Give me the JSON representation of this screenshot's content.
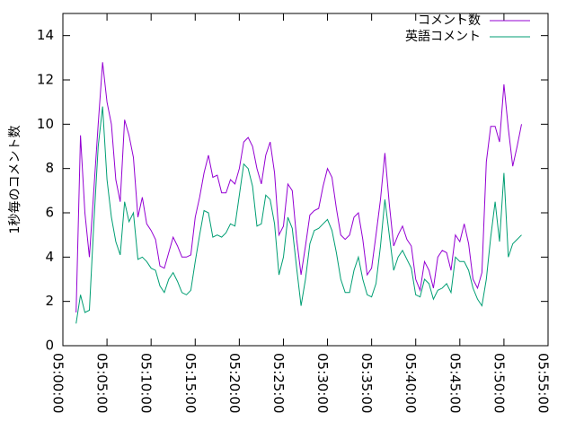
{
  "chart_data": {
    "type": "line",
    "ylabel": "1秒毎のコメント数",
    "ylim": [
      0,
      15
    ],
    "yticks": [
      0,
      2,
      4,
      6,
      8,
      10,
      12,
      14
    ],
    "xlim": [
      "05:00:00",
      "05:55:00"
    ],
    "xticks": [
      "05:00:00",
      "05:05:00",
      "05:10:00",
      "05:15:00",
      "05:20:00",
      "05:25:00",
      "05:30:00",
      "05:35:00",
      "05:40:00",
      "05:45:00",
      "05:50:00",
      "05:55:00"
    ],
    "legend": "top-right",
    "x": [
      "05:01:30",
      "05:02:00",
      "05:02:30",
      "05:03:00",
      "05:03:30",
      "05:04:00",
      "05:04:30",
      "05:05:00",
      "05:05:30",
      "05:06:00",
      "05:06:30",
      "05:07:00",
      "05:07:30",
      "05:08:00",
      "05:08:30",
      "05:09:00",
      "05:09:30",
      "05:10:00",
      "05:10:30",
      "05:11:00",
      "05:11:30",
      "05:12:00",
      "05:12:30",
      "05:13:00",
      "05:13:30",
      "05:14:00",
      "05:14:30",
      "05:15:00",
      "05:15:30",
      "05:16:00",
      "05:16:30",
      "05:17:00",
      "05:17:30",
      "05:18:00",
      "05:18:30",
      "05:19:00",
      "05:19:30",
      "05:20:00",
      "05:20:30",
      "05:21:00",
      "05:21:30",
      "05:22:00",
      "05:22:30",
      "05:23:00",
      "05:23:30",
      "05:24:00",
      "05:24:30",
      "05:25:00",
      "05:25:30",
      "05:26:00",
      "05:26:30",
      "05:27:00",
      "05:27:30",
      "05:28:00",
      "05:28:30",
      "05:29:00",
      "05:29:30",
      "05:30:00",
      "05:30:30",
      "05:31:00",
      "05:31:30",
      "05:32:00",
      "05:32:30",
      "05:33:00",
      "05:33:30",
      "05:34:00",
      "05:34:30",
      "05:35:00",
      "05:35:30",
      "05:36:00",
      "05:36:30",
      "05:37:00",
      "05:37:30",
      "05:38:00",
      "05:38:30",
      "05:39:00",
      "05:39:30",
      "05:40:00",
      "05:40:30",
      "05:41:00",
      "05:41:30",
      "05:42:00",
      "05:42:30",
      "05:43:00",
      "05:43:30",
      "05:44:00",
      "05:44:30",
      "05:45:00",
      "05:45:30",
      "05:46:00",
      "05:46:30",
      "05:47:00",
      "05:47:30",
      "05:48:00",
      "05:48:30",
      "05:49:00",
      "05:49:30",
      "05:50:00",
      "05:50:30",
      "05:51:00",
      "05:51:30",
      "05:52:00"
    ],
    "series": [
      {
        "name": "コメント数",
        "color": "#9400d3",
        "values": [
          1.5,
          9.5,
          6,
          4,
          7,
          10,
          12.8,
          11,
          10,
          7.5,
          6.5,
          10.2,
          9.5,
          8.5,
          5.8,
          6.7,
          5.5,
          5.2,
          4.8,
          3.6,
          3.5,
          4.2,
          4.9,
          4.5,
          4.0,
          4.0,
          4.1,
          5.8,
          6.7,
          7.8,
          8.6,
          7.6,
          7.7,
          6.9,
          6.9,
          7.5,
          7.3,
          8.0,
          9.2,
          9.4,
          9.0,
          8.0,
          7.3,
          8.6,
          9.2,
          7.8,
          5.0,
          5.4,
          7.3,
          7.0,
          4.8,
          3.2,
          4.5,
          5.9,
          6.1,
          6.2,
          7.2,
          8.0,
          7.6,
          6.2,
          5.0,
          4.8,
          5.0,
          5.8,
          6.0,
          4.8,
          3.2,
          3.5,
          5.0,
          6.6,
          8.7,
          6.4,
          4.5,
          5.0,
          5.4,
          4.8,
          4.5,
          3.0,
          2.5,
          3.8,
          3.4,
          2.6,
          4.0,
          4.3,
          4.2,
          3.4,
          5.0,
          4.7,
          5.5,
          4.6,
          3.0,
          2.6,
          3.3,
          8.3,
          9.9,
          9.9,
          9.2,
          11.8,
          9.8,
          8.1,
          9.0,
          10.0
        ]
      },
      {
        "name": "英語コメント",
        "color": "#009e73",
        "values": [
          1.0,
          2.3,
          1.5,
          1.6,
          5.5,
          9,
          10.8,
          7.5,
          5.8,
          4.7,
          4.1,
          6.5,
          5.6,
          6.0,
          3.9,
          4.0,
          3.8,
          3.5,
          3.4,
          2.7,
          2.4,
          3.0,
          3.3,
          2.9,
          2.4,
          2.3,
          2.5,
          3.8,
          5.0,
          6.1,
          6.0,
          4.9,
          5.0,
          4.9,
          5.1,
          5.5,
          5.4,
          6.8,
          8.2,
          8.0,
          7.2,
          5.4,
          5.5,
          6.8,
          6.6,
          5.5,
          3.2,
          4.0,
          5.8,
          5.3,
          3.5,
          1.8,
          3.0,
          4.6,
          5.2,
          5.3,
          5.5,
          5.7,
          5.2,
          4.2,
          3.0,
          2.4,
          2.4,
          3.4,
          4.0,
          3.0,
          2.3,
          2.2,
          2.8,
          4.5,
          6.6,
          5.0,
          3.4,
          4.0,
          4.3,
          3.9,
          3.5,
          2.3,
          2.2,
          3.0,
          2.8,
          2.1,
          2.5,
          2.6,
          2.8,
          2.4,
          4.0,
          3.8,
          3.8,
          3.4,
          2.6,
          2.1,
          1.8,
          3.0,
          4.9,
          6.5,
          4.7,
          7.8,
          4.0,
          4.6,
          4.8,
          5.0
        ]
      }
    ]
  }
}
